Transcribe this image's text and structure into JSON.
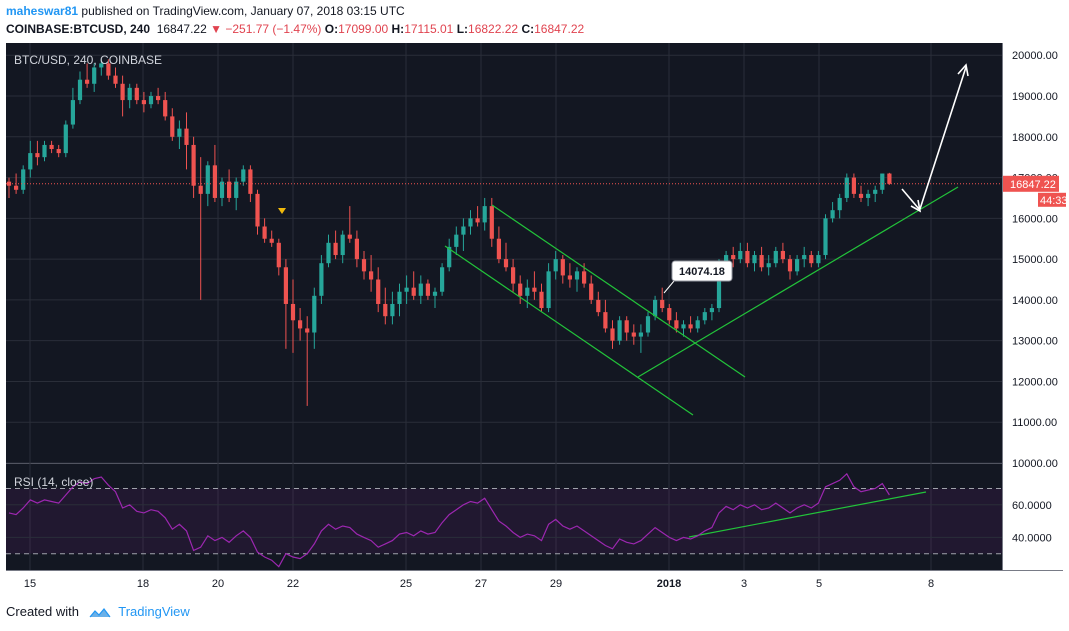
{
  "header": {
    "author": "maheswar81",
    "published_text": "published on TradingView.com, January 07, 2018 03:15 UTC",
    "symbol": "COINBASE:BTCUSD, 240",
    "last": "16847.22",
    "change_arrow": "▼",
    "change": "−251.77 (−1.47%)",
    "o_label": "O:",
    "o_value": "17099.00",
    "h_label": "H:",
    "h_value": "17115.01",
    "l_label": "L:",
    "l_value": "16822.22",
    "c_label": "C:",
    "c_value": "16847.22"
  },
  "colors": {
    "background": "#131722",
    "up": "#26a69a",
    "down": "#ef5350",
    "rsi_line": "#9c27b0",
    "trendline": "#22c33a",
    "price_label_bg": "#ef5350"
  },
  "chart_data": [
    {
      "type": "candlestick",
      "title": "BTC/USD, 240, COINBASE",
      "ylim": [
        10000,
        20300
      ],
      "y_ticks": [
        "20000.00",
        "19000.00",
        "18000.00",
        "17000.00",
        "16000.00",
        "15000.00",
        "14000.00",
        "13000.00",
        "12000.00",
        "11000.00",
        "10000.00"
      ],
      "x_ticks": [
        "15",
        "18",
        "20",
        "22",
        "25",
        "27",
        "29",
        "2018",
        "3",
        "5",
        "8"
      ],
      "last_price_label": "16847.22",
      "last_price": 16847.22,
      "second_label": "44:33",
      "callout": "14074.18",
      "candles_ohlc": [
        [
          16900,
          17000,
          16500,
          16800
        ],
        [
          16800,
          17100,
          16600,
          16700
        ],
        [
          16700,
          17300,
          16600,
          17200
        ],
        [
          17200,
          17900,
          17000,
          17600
        ],
        [
          17600,
          17900,
          17300,
          17500
        ],
        [
          17500,
          17900,
          17400,
          17800
        ],
        [
          17800,
          17900,
          17600,
          17700
        ],
        [
          17700,
          17800,
          17500,
          17600
        ],
        [
          17600,
          18400,
          17500,
          18300
        ],
        [
          18300,
          19200,
          18200,
          18900
        ],
        [
          18900,
          19600,
          18800,
          19400
        ],
        [
          19400,
          19800,
          19200,
          19300
        ],
        [
          19300,
          19800,
          19100,
          19700
        ],
        [
          19700,
          19900,
          19500,
          19800
        ],
        [
          19800,
          19900,
          19400,
          19500
        ],
        [
          19500,
          19700,
          19200,
          19300
        ],
        [
          19300,
          19500,
          18500,
          18900
        ],
        [
          18900,
          19300,
          18700,
          19200
        ],
        [
          19200,
          19300,
          18800,
          18900
        ],
        [
          18900,
          19100,
          18600,
          18800
        ],
        [
          18800,
          19100,
          18700,
          19000
        ],
        [
          19000,
          19200,
          18800,
          18900
        ],
        [
          18900,
          19100,
          18400,
          18500
        ],
        [
          18500,
          18700,
          17900,
          18000
        ],
        [
          18000,
          18400,
          17700,
          18200
        ],
        [
          18200,
          18600,
          17200,
          17800
        ],
        [
          17800,
          18000,
          16500,
          16800
        ],
        [
          16800,
          17500,
          14000,
          16600
        ],
        [
          16600,
          17400,
          16300,
          17300
        ],
        [
          17300,
          17800,
          16400,
          16500
        ],
        [
          16500,
          17000,
          16300,
          16900
        ],
        [
          16900,
          17200,
          16400,
          16500
        ],
        [
          16500,
          17000,
          16200,
          16900
        ],
        [
          16900,
          17300,
          16800,
          17200
        ],
        [
          17200,
          17300,
          16400,
          16600
        ],
        [
          16600,
          16700,
          15600,
          15800
        ],
        [
          15800,
          16000,
          15400,
          15500
        ],
        [
          15500,
          15700,
          15300,
          15400
        ],
        [
          15400,
          15500,
          14600,
          14800
        ],
        [
          14800,
          15000,
          12800,
          13900
        ],
        [
          13900,
          14500,
          12700,
          13500
        ],
        [
          13500,
          13800,
          13000,
          13300
        ],
        [
          13300,
          13600,
          11400,
          13200
        ],
        [
          13200,
          14300,
          12800,
          14100
        ],
        [
          14100,
          15100,
          13900,
          14900
        ],
        [
          14900,
          15600,
          14800,
          15400
        ],
        [
          15400,
          15700,
          15000,
          15100
        ],
        [
          15100,
          15700,
          14900,
          15600
        ],
        [
          15600,
          16300,
          15400,
          15500
        ],
        [
          15500,
          15700,
          14800,
          15000
        ],
        [
          15000,
          15200,
          14500,
          14700
        ],
        [
          14700,
          15100,
          14200,
          14500
        ],
        [
          14500,
          14800,
          13700,
          13900
        ],
        [
          13900,
          14300,
          13400,
          13600
        ],
        [
          13600,
          14200,
          13400,
          13900
        ],
        [
          13900,
          14400,
          13600,
          14200
        ],
        [
          14200,
          14600,
          13900,
          14300
        ],
        [
          14300,
          14700,
          14000,
          14100
        ],
        [
          14100,
          14600,
          13900,
          14400
        ],
        [
          14400,
          14500,
          14000,
          14100
        ],
        [
          14100,
          14300,
          13800,
          14200
        ],
        [
          14200,
          14900,
          14100,
          14800
        ],
        [
          14800,
          15500,
          14700,
          15300
        ],
        [
          15300,
          15800,
          15100,
          15600
        ],
        [
          15600,
          16000,
          15200,
          15800
        ],
        [
          15800,
          16200,
          15600,
          16000
        ],
        [
          16000,
          16300,
          15800,
          15900
        ],
        [
          15900,
          16500,
          15700,
          16300
        ],
        [
          16300,
          16500,
          15300,
          15500
        ],
        [
          15500,
          15800,
          14900,
          15000
        ],
        [
          15000,
          15400,
          14700,
          14800
        ],
        [
          14800,
          15000,
          14200,
          14400
        ],
        [
          14400,
          14600,
          13900,
          14100
        ],
        [
          14100,
          14500,
          13800,
          14300
        ],
        [
          14300,
          14700,
          14000,
          14200
        ],
        [
          14200,
          14400,
          13700,
          13800
        ],
        [
          13800,
          14900,
          13700,
          14700
        ],
        [
          14700,
          15200,
          14500,
          15000
        ],
        [
          15000,
          15100,
          14400,
          14600
        ],
        [
          14600,
          14900,
          14300,
          14500
        ],
        [
          14500,
          14800,
          14200,
          14700
        ],
        [
          14700,
          14900,
          14300,
          14400
        ],
        [
          14400,
          14600,
          13900,
          14000
        ],
        [
          14000,
          14200,
          13600,
          13700
        ],
        [
          13700,
          14000,
          13200,
          13300
        ],
        [
          13300,
          13500,
          12800,
          13000
        ],
        [
          13000,
          13600,
          12900,
          13500
        ],
        [
          13500,
          13600,
          13000,
          13200
        ],
        [
          13200,
          13400,
          12900,
          13100
        ],
        [
          13100,
          13400,
          12700,
          13200
        ],
        [
          13200,
          13700,
          13100,
          13600
        ],
        [
          13600,
          14100,
          13500,
          14000
        ],
        [
          14000,
          14300,
          13700,
          13800
        ],
        [
          13800,
          13900,
          13400,
          13500
        ],
        [
          13500,
          13700,
          13200,
          13300
        ],
        [
          13300,
          13500,
          13100,
          13400
        ],
        [
          13400,
          13600,
          13200,
          13300
        ],
        [
          13300,
          13600,
          13200,
          13500
        ],
        [
          13500,
          13800,
          13400,
          13700
        ],
        [
          13700,
          13900,
          13500,
          13800
        ],
        [
          13800,
          15000,
          13700,
          14900
        ],
        [
          14900,
          15200,
          14700,
          15100
        ],
        [
          15100,
          15300,
          14800,
          15000
        ],
        [
          15000,
          15400,
          14900,
          15200
        ],
        [
          15200,
          15400,
          14800,
          14900
        ],
        [
          14900,
          15200,
          14700,
          15100
        ],
        [
          15100,
          15300,
          14700,
          14800
        ],
        [
          14800,
          15100,
          14600,
          14900
        ],
        [
          14900,
          15300,
          14800,
          15200
        ],
        [
          15200,
          15400,
          14900,
          15000
        ],
        [
          15000,
          15100,
          14500,
          14700
        ],
        [
          14700,
          15100,
          14600,
          15000
        ],
        [
          15000,
          15300,
          14800,
          15100
        ],
        [
          15100,
          15200,
          14800,
          14900
        ],
        [
          14900,
          15200,
          14800,
          15100
        ],
        [
          15100,
          16100,
          15000,
          16000
        ],
        [
          16000,
          16400,
          15900,
          16200
        ],
        [
          16200,
          16600,
          16000,
          16500
        ],
        [
          16500,
          17100,
          16400,
          17000
        ],
        [
          17000,
          17100,
          16500,
          16600
        ],
        [
          16600,
          16800,
          16400,
          16500
        ],
        [
          16500,
          16700,
          16300,
          16600
        ],
        [
          16600,
          16800,
          16400,
          16700
        ],
        [
          16700,
          17100,
          16600,
          17099
        ],
        [
          17099,
          17115,
          16822,
          16847
        ]
      ]
    },
    {
      "type": "line",
      "title": "RSI (14, close)",
      "ylim": [
        20,
        85
      ],
      "y_ticks": [
        "60.0000",
        "40.0000"
      ],
      "bands": [
        70,
        30
      ],
      "rsi_values": [
        55,
        54,
        58,
        63,
        61,
        63,
        62,
        61,
        66,
        71,
        74,
        73,
        76,
        77,
        72,
        68,
        58,
        60,
        56,
        55,
        57,
        56,
        52,
        45,
        48,
        44,
        32,
        34,
        41,
        38,
        40,
        37,
        41,
        44,
        40,
        31,
        28,
        26,
        22,
        30,
        28,
        27,
        30,
        36,
        44,
        48,
        45,
        47,
        46,
        42,
        40,
        38,
        34,
        36,
        38,
        42,
        43,
        41,
        44,
        42,
        43,
        49,
        54,
        57,
        60,
        62,
        61,
        64,
        57,
        50,
        47,
        43,
        40,
        42,
        41,
        38,
        48,
        51,
        47,
        45,
        47,
        44,
        41,
        38,
        35,
        33,
        39,
        37,
        36,
        38,
        42,
        46,
        43,
        40,
        38,
        40,
        39,
        41,
        44,
        46,
        55,
        59,
        57,
        60,
        58,
        60,
        57,
        58,
        61,
        58,
        55,
        58,
        60,
        58,
        61,
        71,
        73,
        75,
        79,
        71,
        68,
        69,
        70,
        73,
        66
      ]
    }
  ],
  "footer": {
    "created_with": "Created with",
    "brand": "TradingView"
  }
}
